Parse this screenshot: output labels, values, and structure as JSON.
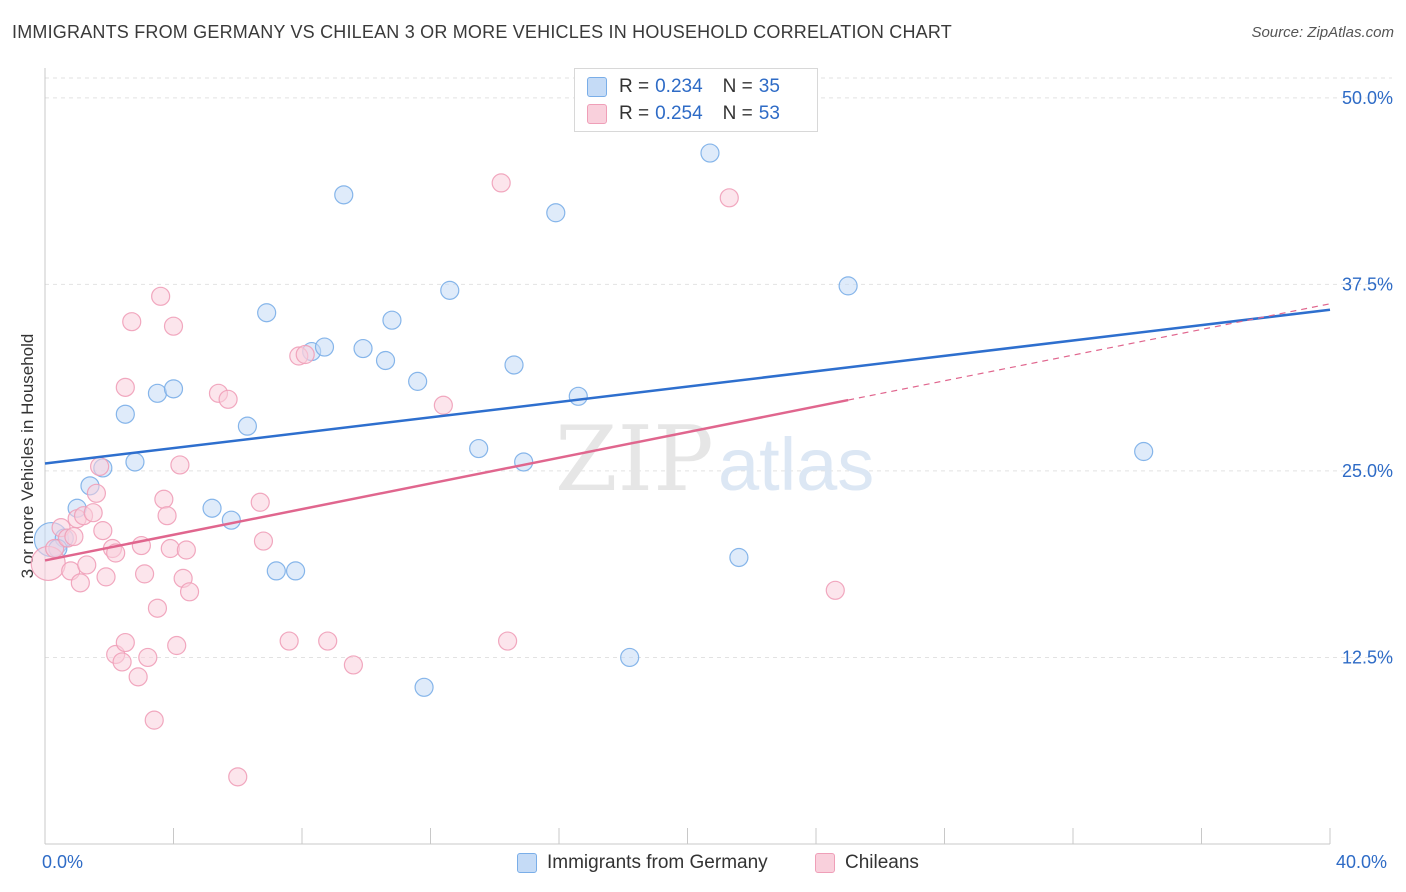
{
  "chart_data": {
    "type": "scatter",
    "title": "IMMIGRANTS FROM GERMANY VS CHILEAN 3 OR MORE VEHICLES IN HOUSEHOLD CORRELATION CHART",
    "source": "Source: ZipAtlas.com",
    "ylabel": "3 or more Vehicles in Household",
    "xlabel": "",
    "xlim": [
      0,
      40
    ],
    "ylim": [
      0,
      52
    ],
    "x_tick_labels": [
      "0.0%",
      "40.0%"
    ],
    "y_ticks": [
      {
        "value": 12.5,
        "label": "12.5%"
      },
      {
        "value": 25.0,
        "label": "25.0%"
      },
      {
        "value": 37.5,
        "label": "37.5%"
      },
      {
        "value": 50.0,
        "label": "50.0%"
      }
    ],
    "watermark": {
      "zip": "ZIP",
      "atlas": "atlas"
    },
    "series": [
      {
        "name": "Immigrants from Germany",
        "color": "#7aaee8",
        "fill": "#c5dbf6",
        "line_color": "#2e6fce",
        "R": "0.234",
        "N": "35",
        "trend": {
          "x0": 0,
          "y0": 25.5,
          "x1": 40,
          "y1": 35.8,
          "solid_to": 40
        },
        "points": [
          {
            "x": 0.2,
            "y": 20.4,
            "big": true
          },
          {
            "x": 0.6,
            "y": 20.5
          },
          {
            "x": 1.0,
            "y": 22.5
          },
          {
            "x": 1.4,
            "y": 24.0
          },
          {
            "x": 1.8,
            "y": 25.2
          },
          {
            "x": 2.5,
            "y": 28.8
          },
          {
            "x": 3.5,
            "y": 30.2
          },
          {
            "x": 4.0,
            "y": 30.5
          },
          {
            "x": 2.8,
            "y": 25.6
          },
          {
            "x": 5.2,
            "y": 22.5
          },
          {
            "x": 5.8,
            "y": 21.7
          },
          {
            "x": 6.3,
            "y": 28.0
          },
          {
            "x": 6.9,
            "y": 35.6
          },
          {
            "x": 7.2,
            "y": 18.3
          },
          {
            "x": 7.8,
            "y": 18.3
          },
          {
            "x": 8.3,
            "y": 33.0
          },
          {
            "x": 8.7,
            "y": 33.3
          },
          {
            "x": 9.3,
            "y": 43.5
          },
          {
            "x": 9.9,
            "y": 33.2
          },
          {
            "x": 10.6,
            "y": 32.4
          },
          {
            "x": 10.8,
            "y": 35.1
          },
          {
            "x": 11.6,
            "y": 31.0
          },
          {
            "x": 11.8,
            "y": 10.5
          },
          {
            "x": 12.6,
            "y": 37.1
          },
          {
            "x": 13.5,
            "y": 26.5
          },
          {
            "x": 14.6,
            "y": 32.1
          },
          {
            "x": 14.9,
            "y": 25.6
          },
          {
            "x": 15.9,
            "y": 42.3
          },
          {
            "x": 16.6,
            "y": 30.0
          },
          {
            "x": 18.2,
            "y": 12.5
          },
          {
            "x": 20.7,
            "y": 46.3
          },
          {
            "x": 21.6,
            "y": 19.2
          },
          {
            "x": 25.0,
            "y": 37.4
          },
          {
            "x": 34.2,
            "y": 26.3
          },
          {
            "x": 0.4,
            "y": 19.8
          }
        ]
      },
      {
        "name": "Chileans",
        "color": "#ef9fb8",
        "fill": "#f9d0dc",
        "line_color": "#e0668e",
        "R": "0.254",
        "N": "53",
        "trend": {
          "x0": 0,
          "y0": 19.0,
          "x1": 40,
          "y1": 36.2,
          "solid_to": 25.0
        },
        "points": [
          {
            "x": 0.1,
            "y": 18.8,
            "big": true
          },
          {
            "x": 0.3,
            "y": 19.8
          },
          {
            "x": 0.5,
            "y": 21.2
          },
          {
            "x": 0.7,
            "y": 20.5
          },
          {
            "x": 0.8,
            "y": 18.3
          },
          {
            "x": 1.0,
            "y": 21.8
          },
          {
            "x": 1.1,
            "y": 17.5
          },
          {
            "x": 1.2,
            "y": 22.0
          },
          {
            "x": 1.3,
            "y": 18.7
          },
          {
            "x": 1.5,
            "y": 22.2
          },
          {
            "x": 1.6,
            "y": 23.5
          },
          {
            "x": 1.7,
            "y": 25.3
          },
          {
            "x": 1.8,
            "y": 21.0
          },
          {
            "x": 1.9,
            "y": 17.9
          },
          {
            "x": 2.1,
            "y": 19.8
          },
          {
            "x": 2.2,
            "y": 19.5
          },
          {
            "x": 2.2,
            "y": 12.7
          },
          {
            "x": 2.4,
            "y": 12.2
          },
          {
            "x": 2.5,
            "y": 13.5
          },
          {
            "x": 2.5,
            "y": 30.6
          },
          {
            "x": 2.7,
            "y": 35.0
          },
          {
            "x": 2.9,
            "y": 11.2
          },
          {
            "x": 3.0,
            "y": 20.0
          },
          {
            "x": 3.1,
            "y": 18.1
          },
          {
            "x": 3.2,
            "y": 12.5
          },
          {
            "x": 3.4,
            "y": 8.3
          },
          {
            "x": 3.5,
            "y": 15.8
          },
          {
            "x": 3.6,
            "y": 36.7
          },
          {
            "x": 3.7,
            "y": 23.1
          },
          {
            "x": 3.8,
            "y": 22.0
          },
          {
            "x": 3.9,
            "y": 19.8
          },
          {
            "x": 4.0,
            "y": 34.7
          },
          {
            "x": 4.1,
            "y": 13.3
          },
          {
            "x": 4.2,
            "y": 25.4
          },
          {
            "x": 4.3,
            "y": 17.8
          },
          {
            "x": 4.4,
            "y": 19.7
          },
          {
            "x": 4.5,
            "y": 16.9
          },
          {
            "x": 5.4,
            "y": 30.2
          },
          {
            "x": 5.7,
            "y": 29.8
          },
          {
            "x": 6.0,
            "y": 4.5
          },
          {
            "x": 6.7,
            "y": 22.9
          },
          {
            "x": 6.8,
            "y": 20.3
          },
          {
            "x": 7.6,
            "y": 13.6
          },
          {
            "x": 7.9,
            "y": 32.7
          },
          {
            "x": 8.1,
            "y": 32.8
          },
          {
            "x": 8.8,
            "y": 13.6
          },
          {
            "x": 9.6,
            "y": 12.0
          },
          {
            "x": 12.4,
            "y": 29.4
          },
          {
            "x": 14.2,
            "y": 44.3
          },
          {
            "x": 14.4,
            "y": 13.6
          },
          {
            "x": 21.3,
            "y": 43.3
          },
          {
            "x": 24.6,
            "y": 17.0
          },
          {
            "x": 0.9,
            "y": 20.6
          }
        ]
      }
    ]
  },
  "legend": {
    "r_label": "R =",
    "n_label": "N ="
  }
}
